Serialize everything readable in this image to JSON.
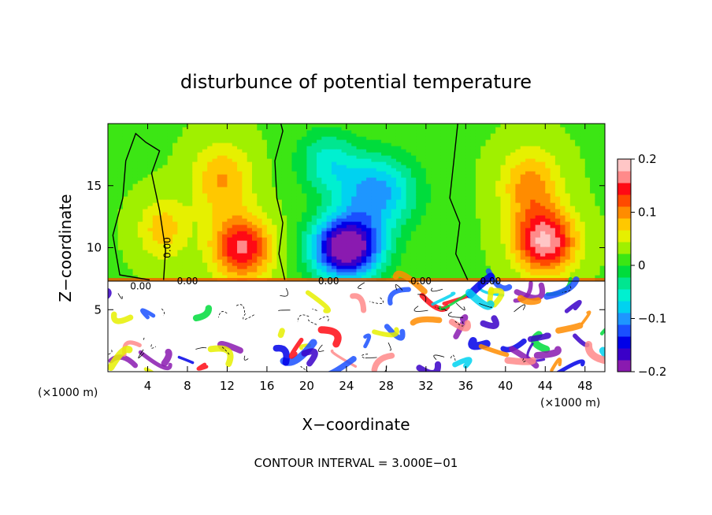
{
  "chart_data": {
    "type": "heatmap",
    "title": "disturbunce of potential temperature",
    "xlabel": "X−coordinate",
    "ylabel": "Z−coordinate",
    "x_unit": "(×1000 m)",
    "x_unit_right": "(×1000 m)",
    "footer": "CONTOUR INTERVAL = 3.000E−01",
    "xlim": [
      0,
      50
    ],
    "ylim": [
      0,
      20
    ],
    "x_ticks": [
      4,
      8,
      12,
      16,
      20,
      24,
      28,
      32,
      36,
      40,
      44,
      48
    ],
    "y_ticks": [
      5,
      10,
      15
    ],
    "colorbar": {
      "range": [
        -0.2,
        0.2
      ],
      "tick_values": [
        0.2,
        0.1,
        0,
        -0.1,
        -0.2
      ],
      "tick_labels": [
        "0.2",
        "0.1",
        "0",
        "−0.1",
        "−0.2"
      ],
      "colors": [
        "#8a1ab0",
        "#3a00c8",
        "#0000e8",
        "#1a50ff",
        "#1e96ff",
        "#00d2f0",
        "#00f0d0",
        "#00e690",
        "#00dc3c",
        "#3ce614",
        "#a0f000",
        "#e6f000",
        "#ffc800",
        "#ff8c00",
        "#ff4a00",
        "#ff0a14",
        "#ff8a8a",
        "#ffc6c6"
      ]
    },
    "contour_labels": [
      "0.00",
      "0.00",
      "0.00",
      "0.00",
      "0.00",
      "0.00"
    ],
    "field": {
      "background": 0.02,
      "interface_z": 7.3,
      "features": [
        {
          "x": 5.5,
          "z": 11.5,
          "amp": 0.06,
          "sx": 2.5,
          "sz": 2.5
        },
        {
          "x": 13.5,
          "z": 10.0,
          "amp": 0.14,
          "sx": 3.0,
          "sz": 2.5
        },
        {
          "x": 11.5,
          "z": 15.5,
          "amp": 0.07,
          "sx": 3.0,
          "sz": 3.0
        },
        {
          "x": 24.0,
          "z": 10.0,
          "amp": -0.24,
          "sx": 3.5,
          "sz": 2.5
        },
        {
          "x": 27.0,
          "z": 14.5,
          "amp": -0.12,
          "sx": 4.0,
          "sz": 3.0
        },
        {
          "x": 22.0,
          "z": 17.0,
          "amp": -0.07,
          "sx": 3.0,
          "sz": 2.5
        },
        {
          "x": 44.0,
          "z": 10.5,
          "amp": 0.16,
          "sx": 3.0,
          "sz": 2.5
        },
        {
          "x": 42.5,
          "z": 15.0,
          "amp": 0.08,
          "sx": 3.0,
          "sz": 3.0
        }
      ]
    }
  }
}
